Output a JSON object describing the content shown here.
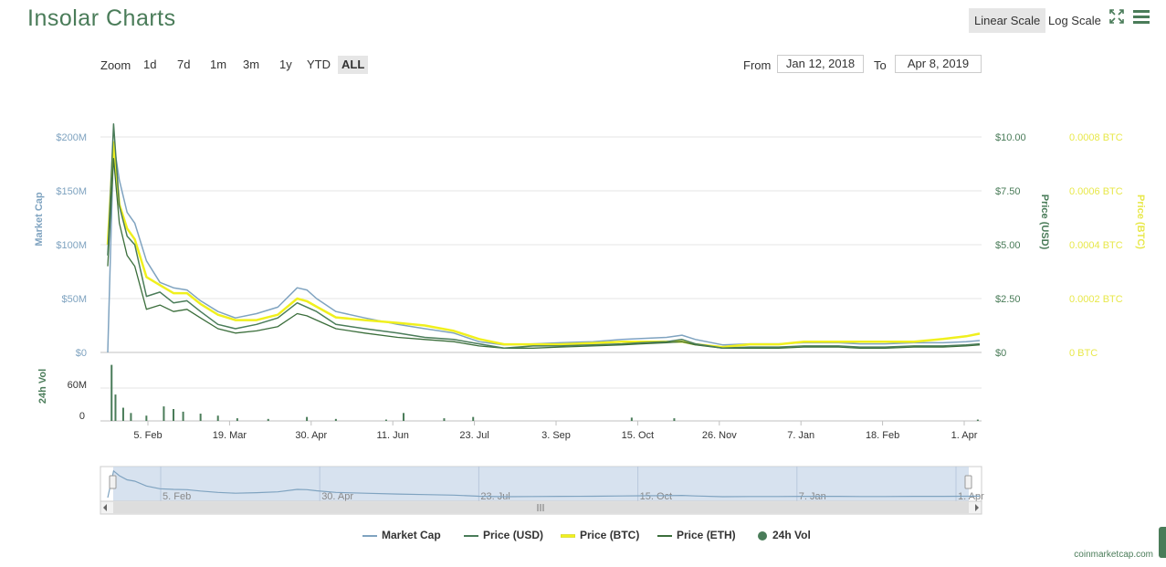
{
  "header": {
    "title": "Insolar Charts",
    "linear_scale": "Linear Scale",
    "log_scale": "Log Scale",
    "fullscreen_icon": "expand-icon",
    "menu_icon": "hamburger-menu-icon"
  },
  "zoom": {
    "label": "Zoom",
    "options": [
      "1d",
      "7d",
      "1m",
      "3m",
      "1y",
      "YTD",
      "ALL"
    ],
    "active": "ALL"
  },
  "range": {
    "from_label": "From",
    "from_value": "Jan 12, 2018",
    "to_label": "To",
    "to_value": "Apr 8, 2019"
  },
  "legend": {
    "items": [
      "Market Cap",
      "Price (USD)",
      "Price (BTC)",
      "Price (ETH)",
      "24h Vol"
    ]
  },
  "credit": "coinmarketcap.com",
  "colors": {
    "market_cap": "#7fa3c0",
    "price_usd": "#4a7c59",
    "price_btc": "#f0f01e",
    "price_eth": "#3b6e3b",
    "volume": "#4a7c59",
    "title": "#4a7c59"
  },
  "chart_data": {
    "type": "line",
    "title": "Insolar Charts",
    "x": [
      "2018-01-12",
      "2018-01-15",
      "2018-01-18",
      "2018-01-22",
      "2018-01-26",
      "2018-02-01",
      "2018-02-08",
      "2018-02-15",
      "2018-02-22",
      "2018-03-01",
      "2018-03-10",
      "2018-03-19",
      "2018-03-30",
      "2018-04-10",
      "2018-04-20",
      "2018-04-25",
      "2018-04-30",
      "2018-05-10",
      "2018-05-25",
      "2018-06-11",
      "2018-06-25",
      "2018-07-10",
      "2018-07-23",
      "2018-08-05",
      "2018-08-20",
      "2018-09-03",
      "2018-09-20",
      "2018-10-05",
      "2018-10-15",
      "2018-10-28",
      "2018-11-05",
      "2018-11-12",
      "2018-11-26",
      "2018-12-10",
      "2018-12-25",
      "2019-01-07",
      "2019-01-25",
      "2019-02-05",
      "2019-02-18",
      "2019-03-05",
      "2019-03-20",
      "2019-04-01",
      "2019-04-08"
    ],
    "x_ticks": [
      "5. Feb",
      "19. Mar",
      "30. Apr",
      "11. Jun",
      "23. Jul",
      "3. Sep",
      "15. Oct",
      "26. Nov",
      "7. Jan",
      "18. Feb",
      "1. Apr"
    ],
    "navigator_ticks": [
      "5. Feb",
      "30. Apr",
      "23. Jul",
      "15. Oct",
      "7. Jan",
      "1. Apr"
    ],
    "axes": {
      "market_cap": {
        "label": "Market Cap",
        "range": [
          0,
          200000000
        ],
        "ticks": [
          "$0",
          "$50M",
          "$100M",
          "$150M",
          "$200M"
        ]
      },
      "price_usd": {
        "label": "Price (USD)",
        "range": [
          0,
          10
        ],
        "ticks": [
          "$0",
          "$2.50",
          "$5.00",
          "$7.50",
          "$10.00"
        ]
      },
      "price_btc": {
        "label": "Price (BTC)",
        "range": [
          0,
          0.0008
        ],
        "ticks": [
          "0 BTC",
          "0.0002 BTC",
          "0.0004 BTC",
          "0.0006 BTC",
          "0.0008 BTC"
        ]
      },
      "volume": {
        "label": "24h Vol",
        "range": [
          0,
          90000000
        ],
        "ticks": [
          "0",
          "60M"
        ]
      }
    },
    "series": [
      {
        "name": "Market Cap",
        "axis": "market_cap",
        "values": [
          0,
          195000000,
          160000000,
          130000000,
          120000000,
          85000000,
          65000000,
          60000000,
          58000000,
          48000000,
          38000000,
          32000000,
          36000000,
          42000000,
          60000000,
          58000000,
          50000000,
          38000000,
          32000000,
          26000000,
          22000000,
          18000000,
          10000000,
          7000000,
          8000000,
          9000000,
          10000000,
          12000000,
          13000000,
          14000000,
          16000000,
          12000000,
          7000000,
          8000000,
          8000000,
          9000000,
          9000000,
          8000000,
          8000000,
          9000000,
          9000000,
          10000000,
          11000000
        ]
      },
      {
        "name": "Price (USD)",
        "axis": "price_usd",
        "values": [
          4.5,
          10.6,
          6.8,
          5.4,
          5.0,
          2.6,
          2.8,
          2.3,
          2.4,
          1.9,
          1.3,
          1.1,
          1.3,
          1.6,
          2.3,
          2.1,
          1.9,
          1.3,
          1.1,
          0.9,
          0.7,
          0.6,
          0.4,
          0.2,
          0.3,
          0.3,
          0.35,
          0.4,
          0.45,
          0.5,
          0.6,
          0.4,
          0.2,
          0.25,
          0.25,
          0.3,
          0.3,
          0.25,
          0.25,
          0.3,
          0.3,
          0.35,
          0.4
        ]
      },
      {
        "name": "Price (BTC)",
        "axis": "price_btc",
        "values": [
          0.0004,
          0.00078,
          0.00055,
          0.00046,
          0.00042,
          0.00028,
          0.00025,
          0.00022,
          0.00022,
          0.00018,
          0.00014,
          0.00012,
          0.00012,
          0.00014,
          0.0002,
          0.00019,
          0.00017,
          0.00013,
          0.00012,
          0.00011,
          0.0001,
          8e-05,
          5e-05,
          3e-05,
          3e-05,
          3e-05,
          3.5e-05,
          4e-05,
          4e-05,
          4e-05,
          4e-05,
          3e-05,
          2e-05,
          3e-05,
          3e-05,
          4e-05,
          4e-05,
          4e-05,
          4e-05,
          4e-05,
          5e-05,
          6e-05,
          7e-05
        ]
      },
      {
        "name": "Price (ETH)",
        "axis": "price_usd",
        "values": [
          4.0,
          9.0,
          6.0,
          4.5,
          4.0,
          2.0,
          2.2,
          1.9,
          2.0,
          1.6,
          1.1,
          0.9,
          1.0,
          1.2,
          1.8,
          1.7,
          1.5,
          1.1,
          0.9,
          0.7,
          0.6,
          0.5,
          0.3,
          0.2,
          0.2,
          0.25,
          0.3,
          0.35,
          0.4,
          0.45,
          0.5,
          0.35,
          0.2,
          0.2,
          0.2,
          0.25,
          0.25,
          0.2,
          0.2,
          0.25,
          0.25,
          0.3,
          0.35
        ]
      }
    ],
    "volume": {
      "name": "24h Vol",
      "x": [
        "2018-01-14",
        "2018-01-16",
        "2018-01-20",
        "2018-01-24",
        "2018-02-01",
        "2018-02-10",
        "2018-02-15",
        "2018-02-20",
        "2018-03-01",
        "2018-03-10",
        "2018-03-20",
        "2018-04-05",
        "2018-04-25",
        "2018-05-10",
        "2018-06-05",
        "2018-06-14",
        "2018-07-05",
        "2018-07-20",
        "2018-10-10",
        "2018-11-01",
        "2019-04-07"
      ],
      "values": [
        85000000,
        40000000,
        20000000,
        12000000,
        8000000,
        22000000,
        18000000,
        14000000,
        11000000,
        8000000,
        4000000,
        3000000,
        6000000,
        3000000,
        2000000,
        12000000,
        4000000,
        6000000,
        5000000,
        4000000,
        2000000
      ]
    }
  }
}
